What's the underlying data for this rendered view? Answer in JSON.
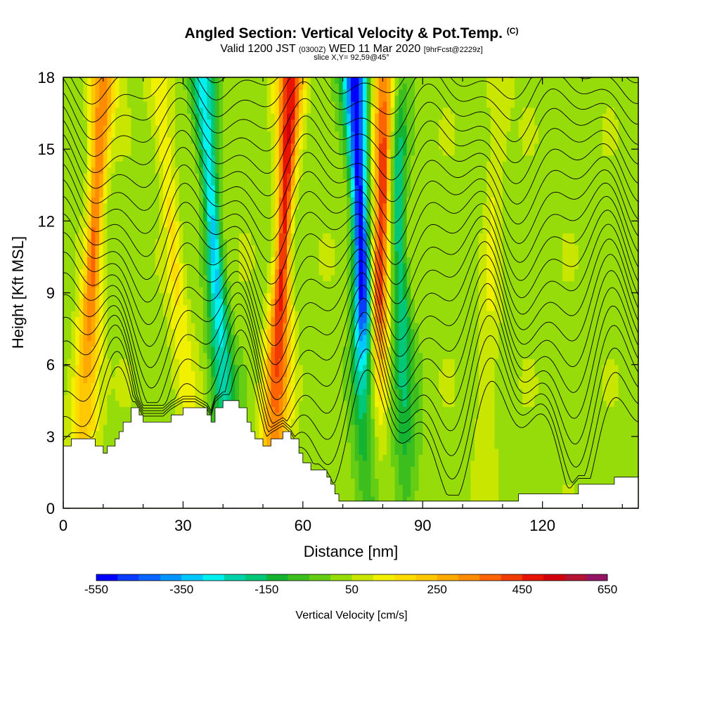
{
  "header": {
    "title_main": "Angled Section: Vertical Velocity & Pot.Temp.",
    "title_unit": "(C)",
    "valid_prefix": "Valid 1200 JST",
    "valid_zulu": "(0300Z)",
    "valid_date": "WED 11 Mar 2020",
    "forecast_tag": "[9hrFcst@2229z]",
    "slice_label": "slice X,Y= 92,59@45°"
  },
  "colors": {
    "palette": [
      "#0000ff",
      "#0a3cff",
      "#0a64ff",
      "#0096ff",
      "#00c8ff",
      "#00f0f0",
      "#00d2aa",
      "#00c878",
      "#14b432",
      "#3cbe1e",
      "#64cd14",
      "#96dc0a",
      "#c8e600",
      "#f0f000",
      "#ffdc00",
      "#ffc800",
      "#ffaa00",
      "#ff8c00",
      "#ff6400",
      "#f03c00",
      "#e61400",
      "#d2000a",
      "#b41432",
      "#961464",
      "#6e1482",
      "#501482"
    ],
    "terrain": "#ffffff",
    "contour": "#000000"
  },
  "chart_data": {
    "type": "heatmap",
    "title": "Angled Section: Vertical Velocity & Pot.Temp. (C)",
    "subtitle": "Valid 1200 JST (0300Z) WED 11 Mar 2020 [9hrFcst@2229z]",
    "xlabel": "Distance [nm]",
    "ylabel": "Height [Kft MSL]",
    "xlim": [
      0,
      144
    ],
    "ylim": [
      0,
      18
    ],
    "xticks": [
      0,
      30,
      60,
      90,
      120
    ],
    "yticks": [
      0,
      3,
      6,
      9,
      12,
      15,
      18
    ],
    "colorbar": {
      "label": "Vertical Velocity [cm/s]",
      "min": -550,
      "max": 650,
      "step": 50,
      "tick_labels": [
        "-550",
        "-350",
        "-150",
        "50",
        "250",
        "450",
        "650"
      ]
    },
    "updrafts": [
      {
        "x_bottom": 4,
        "x_top": 10,
        "peak": 350
      },
      {
        "x_bottom": 33,
        "x_top": 24,
        "peak": 150
      },
      {
        "x_bottom": 52,
        "x_top": 57,
        "peak": 480
      },
      {
        "x_bottom": 77,
        "x_top": 81,
        "peak": 460
      },
      {
        "x_bottom": 105,
        "x_top": 109,
        "peak": 100
      }
    ],
    "downdrafts": [
      {
        "x_bottom": 42,
        "x_top": 35,
        "peak": -300
      },
      {
        "x_bottom": 77,
        "x_top": 73,
        "peak": -540
      },
      {
        "x_bottom": 86,
        "x_top": 83,
        "peak": -200
      }
    ],
    "terrain_height_kft": {
      "x": [
        0,
        2,
        5,
        8,
        10,
        11,
        13,
        14,
        15,
        17,
        18,
        19,
        20,
        22,
        25,
        27,
        30,
        33,
        36,
        37,
        38,
        40,
        42,
        44,
        46,
        47,
        48,
        50,
        52,
        55,
        57,
        59,
        60,
        62,
        64,
        66,
        67,
        68,
        69,
        70,
        72,
        79,
        81,
        98,
        99,
        112,
        114,
        117,
        122,
        127,
        129,
        135,
        138,
        144
      ],
      "height": [
        2.6,
        2.9,
        2.9,
        2.6,
        2.3,
        2.6,
        2.9,
        3.2,
        3.6,
        4.2,
        4.2,
        3.9,
        3.6,
        3.6,
        3.6,
        3.9,
        4.2,
        4.2,
        3.9,
        3.6,
        4.2,
        4.5,
        4.5,
        4.2,
        3.6,
        3.2,
        2.9,
        2.6,
        2.9,
        3.2,
        2.9,
        2.3,
        1.9,
        1.6,
        1.6,
        1.3,
        1.0,
        0.6,
        0.3,
        0.3,
        0.3,
        0.3,
        0.3,
        0.3,
        0.3,
        0.3,
        0.6,
        0.6,
        0.6,
        0.6,
        1.0,
        1.0,
        1.3,
        1.3
      ]
    }
  }
}
